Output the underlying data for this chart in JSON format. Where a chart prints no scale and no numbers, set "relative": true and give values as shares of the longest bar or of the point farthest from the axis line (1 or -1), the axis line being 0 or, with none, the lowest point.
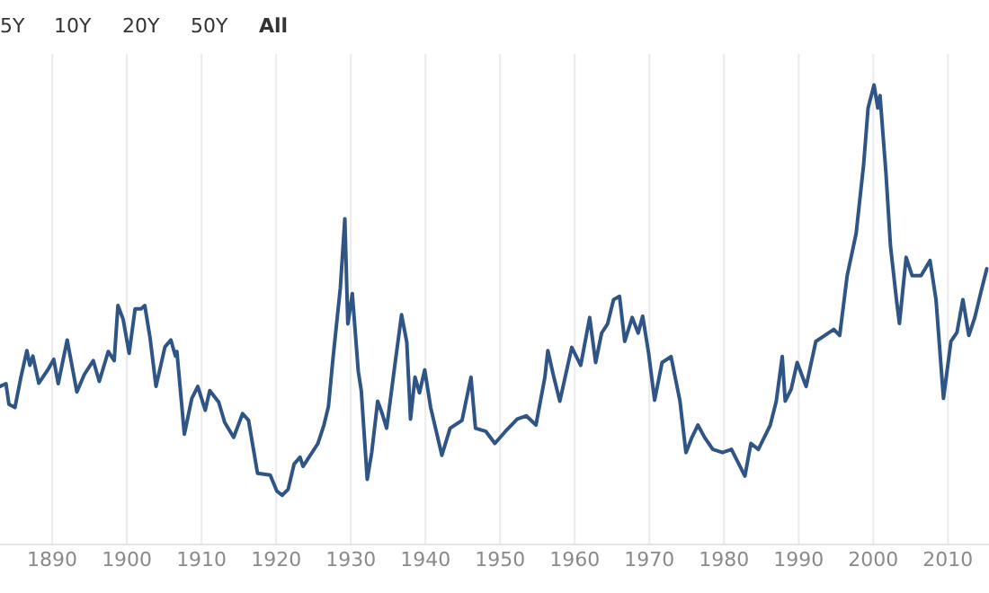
{
  "chart_data": {
    "type": "line",
    "relative": true,
    "grid": "x",
    "line_style": "solid",
    "annotations": [
      "5Y",
      "10Y",
      "20Y",
      "50Y",
      "All"
    ],
    "xlim": [
      1883,
      2015.5
    ],
    "xticks": [
      1890,
      1900,
      1910,
      1920,
      1930,
      1940,
      1950,
      1960,
      1970,
      1980,
      1990,
      2000,
      2010
    ],
    "series": [
      {
        "color": "#2f5586",
        "x": [
          1883.0,
          1883.8,
          1884.2,
          1885.0,
          1885.8,
          1886.6,
          1887.0,
          1887.4,
          1888.2,
          1889.4,
          1890.2,
          1890.8,
          1892.0,
          1893.3,
          1894.3,
          1895.5,
          1896.3,
          1897.5,
          1898.3,
          1898.8,
          1899.5,
          1900.3,
          1901.1,
          1901.9,
          1902.4,
          1903.1,
          1903.9,
          1905.1,
          1905.9,
          1906.5,
          1906.7,
          1907.7,
          1908.7,
          1909.5,
          1910.5,
          1911.1,
          1912.3,
          1913.1,
          1914.3,
          1915.5,
          1916.3,
          1917.5,
          1919.2,
          1920.1,
          1920.8,
          1921.6,
          1922.4,
          1923.2,
          1923.6,
          1924.8,
          1925.6,
          1926.4,
          1927.0,
          1927.6,
          1928.6,
          1929.2,
          1929.6,
          1930.2,
          1931.0,
          1931.4,
          1932.2,
          1932.8,
          1933.6,
          1934.2,
          1934.8,
          1936.0,
          1936.8,
          1937.5,
          1938.0,
          1938.6,
          1939.2,
          1939.9,
          1940.7,
          1942.2,
          1943.3,
          1944.9,
          1946.1,
          1946.7,
          1948.1,
          1949.3,
          1950.7,
          1952.3,
          1953.5,
          1954.8,
          1956.0,
          1956.4,
          1957.2,
          1958.0,
          1959.6,
          1960.8,
          1962.0,
          1962.8,
          1963.6,
          1964.4,
          1965.2,
          1966.0,
          1966.7,
          1967.7,
          1968.5,
          1969.1,
          1969.9,
          1970.7,
          1971.7,
          1972.9,
          1974.1,
          1974.9,
          1975.7,
          1976.5,
          1977.4,
          1978.5,
          1979.8,
          1981.0,
          1981.8,
          1982.8,
          1983.6,
          1984.6,
          1986.2,
          1987.0,
          1987.8,
          1988.2,
          1989.0,
          1989.8,
          1991.0,
          1992.3,
          1993.5,
          1994.7,
          1995.5,
          1996.5,
          1997.7,
          1998.7,
          1999.3,
          2000.1,
          2000.6,
          2000.9,
          2001.7,
          2002.3,
          2003.1,
          2003.5,
          2004.4,
          2005.2,
          2006.4,
          2007.6,
          2008.4,
          2009.4,
          2010.4,
          2011.2,
          2012.0,
          2012.8,
          2013.6,
          2014.4,
          2015.2
        ],
        "values": [
          0.344,
          0.35,
          0.305,
          0.298,
          0.364,
          0.422,
          0.39,
          0.41,
          0.351,
          0.38,
          0.403,
          0.35,
          0.445,
          0.332,
          0.37,
          0.4,
          0.355,
          0.42,
          0.4,
          0.52,
          0.49,
          0.416,
          0.513,
          0.513,
          0.52,
          0.45,
          0.344,
          0.43,
          0.445,
          0.41,
          0.42,
          0.24,
          0.318,
          0.344,
          0.292,
          0.335,
          0.31,
          0.266,
          0.233,
          0.285,
          0.27,
          0.155,
          0.151,
          0.116,
          0.107,
          0.12,
          0.175,
          0.19,
          0.17,
          0.2,
          0.22,
          0.26,
          0.3,
          0.403,
          0.559,
          0.709,
          0.48,
          0.546,
          0.377,
          0.335,
          0.142,
          0.2,
          0.312,
          0.285,
          0.253,
          0.403,
          0.5,
          0.44,
          0.273,
          0.364,
          0.33,
          0.38,
          0.298,
          0.194,
          0.253,
          0.27,
          0.364,
          0.253,
          0.246,
          0.22,
          0.246,
          0.273,
          0.28,
          0.26,
          0.364,
          0.422,
          0.364,
          0.312,
          0.429,
          0.39,
          0.494,
          0.396,
          0.46,
          0.48,
          0.533,
          0.54,
          0.442,
          0.494,
          0.46,
          0.497,
          0.416,
          0.314,
          0.396,
          0.409,
          0.312,
          0.2,
          0.233,
          0.26,
          0.233,
          0.207,
          0.2,
          0.207,
          0.181,
          0.149,
          0.22,
          0.207,
          0.26,
          0.312,
          0.409,
          0.312,
          0.338,
          0.396,
          0.344,
          0.442,
          0.455,
          0.468,
          0.455,
          0.585,
          0.677,
          0.826,
          0.95,
          1.0,
          0.95,
          0.977,
          0.807,
          0.65,
          0.533,
          0.481,
          0.625,
          0.585,
          0.585,
          0.618,
          0.533,
          0.318,
          0.442,
          0.461,
          0.533,
          0.455,
          0.494,
          0.548,
          0.6
        ]
      }
    ]
  }
}
